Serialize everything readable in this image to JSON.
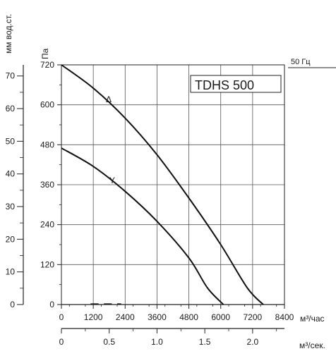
{
  "chart_data": {
    "type": "line",
    "title": "TDHS 500",
    "frequency_label": "50 Гц",
    "x": {
      "unit_label": "м³/час",
      "range": [
        0,
        8400
      ],
      "ticks": [
        0,
        1200,
        2400,
        3600,
        4800,
        6000,
        7200,
        8400
      ],
      "tick_labels": [
        "0",
        "1200",
        "2400",
        "3600",
        "4800",
        "6000",
        "7200",
        "8400"
      ]
    },
    "x2": {
      "unit_label": "м³/сек.",
      "range": [
        0,
        2.3333
      ],
      "tick_values": [
        0,
        0.5,
        1.0,
        1.5,
        2.0
      ],
      "tick_labels": [
        "0",
        "0.5",
        "1.0",
        "1.5",
        "2.0"
      ]
    },
    "y": {
      "unit_label": "Па",
      "range": [
        0,
        720
      ],
      "ticks": [
        0,
        120,
        240,
        360,
        480,
        600,
        720
      ],
      "tick_labels": [
        "0",
        "120",
        "240",
        "360",
        "480",
        "600",
        "720"
      ]
    },
    "y2": {
      "unit_label": "мм вод.ст.",
      "range": [
        0,
        73.4
      ],
      "tick_values": [
        0,
        10,
        20,
        30,
        40,
        50,
        60,
        70
      ],
      "tick_labels": [
        "0",
        "10",
        "20",
        "30",
        "40",
        "50",
        "60",
        "70"
      ]
    },
    "grid": true,
    "series": [
      {
        "name": "Δ",
        "color": "#111111",
        "points": [
          [
            0,
            720
          ],
          [
            1200,
            650
          ],
          [
            2400,
            560
          ],
          [
            3600,
            450
          ],
          [
            4800,
            320
          ],
          [
            6000,
            180
          ],
          [
            7000,
            50
          ],
          [
            7600,
            0
          ]
        ]
      },
      {
        "name": "Y",
        "color": "#111111",
        "points": [
          [
            0,
            470
          ],
          [
            1200,
            415
          ],
          [
            2400,
            340
          ],
          [
            3600,
            250
          ],
          [
            4800,
            140
          ],
          [
            5500,
            50
          ],
          [
            6100,
            0
          ]
        ]
      }
    ]
  }
}
